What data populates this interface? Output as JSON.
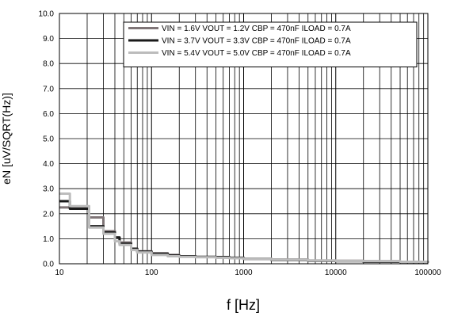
{
  "chart_data": {
    "type": "line",
    "title": "",
    "xlabel": "f [Hz]",
    "ylabel": "eN [uV/SQRT(Hz)]",
    "xscale": "log",
    "xlim": [
      10,
      100000
    ],
    "ylim": [
      0,
      10
    ],
    "grid": true,
    "legend_position": "top-right",
    "x_tick_labels": [
      "10",
      "100",
      "1000",
      "10000",
      "100000"
    ],
    "y_tick_labels": [
      "0.0",
      "1.0",
      "2.0",
      "3.0",
      "4.0",
      "5.0",
      "6.0",
      "7.0",
      "8.0",
      "9.0",
      "10.0"
    ],
    "series": [
      {
        "name": "VIN = 1.6V VOUT = 1.2V CBP = 470nF ILOAD = 0.7A",
        "color": "#7f7577",
        "x": [
          10,
          11,
          13,
          20,
          21,
          28,
          30,
          40,
          45,
          60,
          70,
          100,
          150,
          200,
          300,
          500,
          700,
          1000,
          2000,
          5000,
          10000,
          20000,
          50000,
          100000
        ],
        "y": [
          2.25,
          2.25,
          2.25,
          2.25,
          1.85,
          1.85,
          1.3,
          1.05,
          0.85,
          0.6,
          0.5,
          0.42,
          0.35,
          0.3,
          0.27,
          0.25,
          0.22,
          0.2,
          0.17,
          0.13,
          0.12,
          0.1,
          0.08,
          0.06
        ]
      },
      {
        "name": "VIN = 3.7V VOUT = 3.3V CBP = 470nF ILOAD = 0.7A",
        "color": "#1a1a1a",
        "x": [
          10,
          11,
          13,
          20,
          21,
          28,
          30,
          40,
          45,
          60,
          70,
          100,
          150,
          200,
          300,
          500,
          700,
          1000,
          2000,
          5000,
          10000,
          20000,
          50000,
          100000
        ],
        "y": [
          2.5,
          2.5,
          2.2,
          2.2,
          1.5,
          1.5,
          1.25,
          1.05,
          0.8,
          0.6,
          0.48,
          0.4,
          0.33,
          0.3,
          0.28,
          0.27,
          0.24,
          0.2,
          0.15,
          0.12,
          0.1,
          0.08,
          0.07,
          0.05
        ]
      },
      {
        "name": "VIN = 5.4V VOUT = 5.0V CBP = 470nF ILOAD = 0.7A",
        "color": "#bcbcbc",
        "x": [
          10,
          12,
          13,
          20,
          21,
          28,
          30,
          40,
          45,
          60,
          70,
          100,
          150,
          200,
          300,
          500,
          700,
          1000,
          2000,
          5000,
          10000,
          20000,
          50000,
          100000
        ],
        "y": [
          2.8,
          2.8,
          2.3,
          2.3,
          1.45,
          1.45,
          1.2,
          0.9,
          0.75,
          0.55,
          0.45,
          0.35,
          0.3,
          0.28,
          0.26,
          0.24,
          0.22,
          0.2,
          0.16,
          0.13,
          0.11,
          0.1,
          0.08,
          0.07
        ]
      }
    ]
  }
}
